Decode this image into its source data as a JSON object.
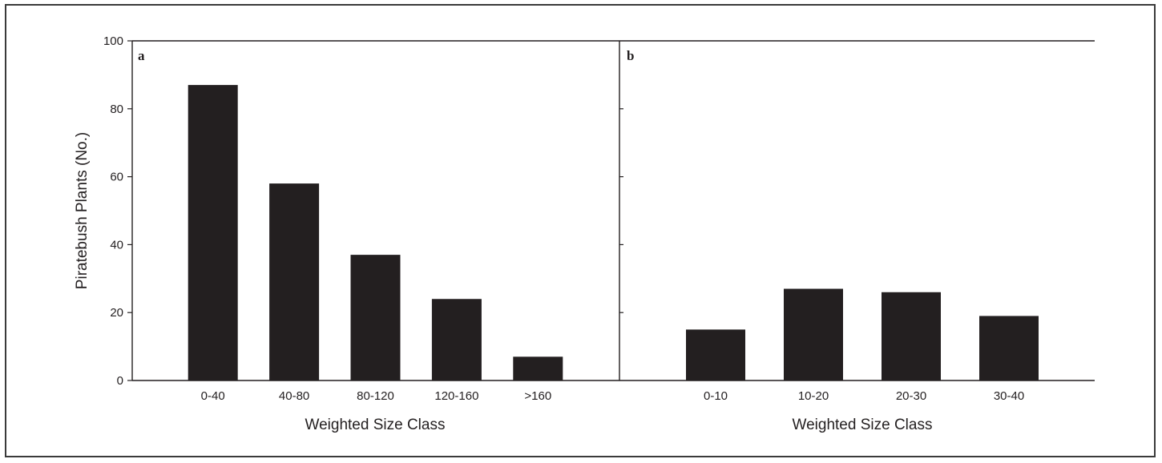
{
  "chart_data": [
    {
      "type": "bar",
      "panel_label": "a",
      "categories": [
        "0-40",
        "40-80",
        "80-120",
        "120-160",
        ">160"
      ],
      "values": [
        87,
        58,
        37,
        24,
        7
      ],
      "xlabel": "Weighted Size Class",
      "ylabel": "Piratebush Plants (No.)",
      "ylim": [
        0,
        100
      ],
      "yticks": [
        "0",
        "20",
        "40",
        "60",
        "80",
        "100"
      ],
      "bar_color": "#231f20"
    },
    {
      "type": "bar",
      "panel_label": "b",
      "categories": [
        "0-10",
        "10-20",
        "20-30",
        "30-40"
      ],
      "values": [
        15,
        27,
        26,
        19
      ],
      "xlabel": "Weighted Size Class",
      "ylim": [
        0,
        100
      ],
      "bar_color": "#231f20"
    }
  ]
}
